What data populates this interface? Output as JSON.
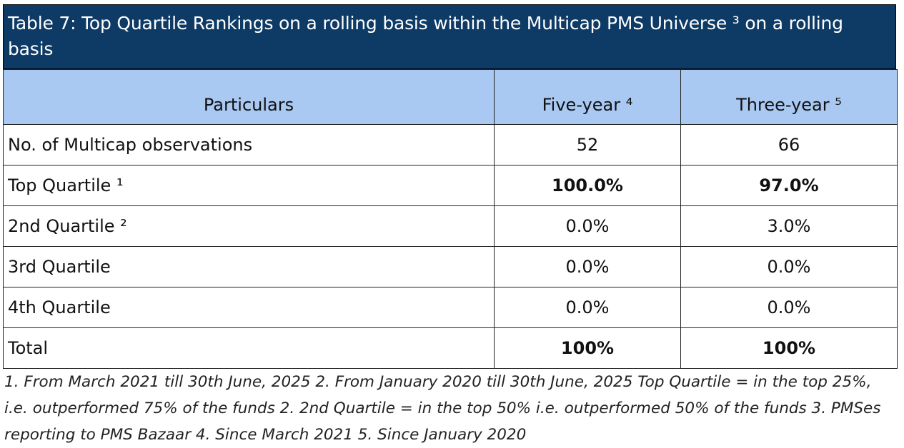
{
  "title": "Table 7: Top Quartile Rankings on a rolling basis within the Multicap PMS Universe ³ on a rolling basis",
  "columns": [
    "Particulars",
    "Five-year ⁴",
    "Three-year ⁵"
  ],
  "rows": [
    {
      "label": "No. of Multicap observations",
      "five_year": "52",
      "three_year": "66",
      "bold": false
    },
    {
      "label": "Top Quartile ¹",
      "five_year": "100.0%",
      "three_year": "97.0%",
      "bold": true
    },
    {
      "label": "2nd Quartile ²",
      "five_year": "0.0%",
      "three_year": "3.0%",
      "bold": false
    },
    {
      "label": "3rd Quartile",
      "five_year": "0.0%",
      "three_year": "0.0%",
      "bold": false
    },
    {
      "label": "4th Quartile",
      "five_year": "0.0%",
      "three_year": "0.0%",
      "bold": false
    },
    {
      "label": "Total",
      "five_year": "100%",
      "three_year": "100%",
      "bold": true
    }
  ],
  "footnote": "1. From March 2021 till 30th June, 2025 2. From January 2020 till 30th June, 2025 Top Quartile = in the top 25%, i.e. outperformed 75% of the funds 2. 2nd Quartile = in the top 50% i.e. outperformed 50% of the funds 3. PMSes reporting to PMS Bazaar 4. Since March 2021 5. Since January 2020"
}
